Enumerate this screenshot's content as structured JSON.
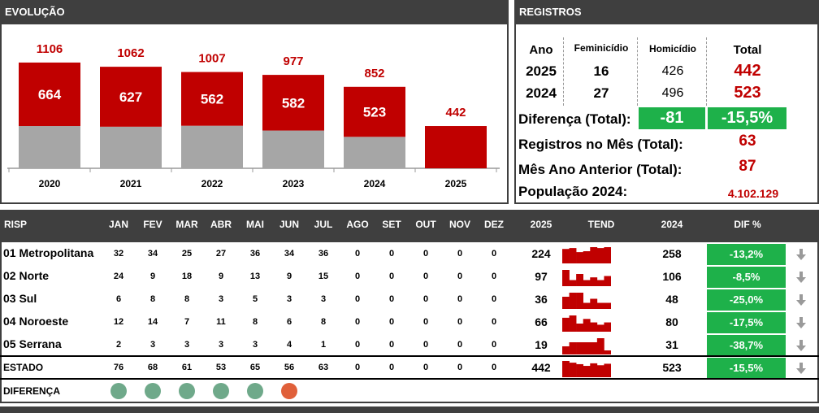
{
  "evolucao": {
    "title": "EVOLUÇÃO",
    "chart_data": {
      "type": "bar",
      "categories": [
        "2020",
        "2021",
        "2022",
        "2023",
        "2024",
        "2025"
      ],
      "series": [
        {
          "name": "",
          "values": [
            442,
            435,
            445,
            395,
            329,
            0
          ],
          "color": "#a6a6a6"
        },
        {
          "name": "",
          "values": [
            664,
            627,
            562,
            582,
            523,
            442
          ],
          "color": "#c00000"
        }
      ],
      "totals": [
        1106,
        1062,
        1007,
        977,
        852,
        442
      ],
      "inner_labels": [
        "664",
        "627",
        "562",
        "582",
        "523",
        ""
      ],
      "top_labels": [
        "1106",
        "1062",
        "1007",
        "977",
        "852",
        "442"
      ],
      "ylim": [
        0,
        1250
      ]
    }
  },
  "registros": {
    "title": "REGISTROS",
    "headers": {
      "ano": "Ano",
      "fem": "Feminicídio",
      "hom": "Homicídio",
      "total": "Total"
    },
    "rows": [
      {
        "ano": "2025",
        "fem": "16",
        "hom": "426",
        "total": "442"
      },
      {
        "ano": "2024",
        "fem": "27",
        "hom": "496",
        "total": "523"
      }
    ],
    "diferenca_label": "Diferença (Total):",
    "diferenca_abs": "-81",
    "diferenca_pct": "-15,5%",
    "mes_label": "Registros no Mês (Total):",
    "mes_value": "63",
    "mes_anterior_label": "Mês Ano Anterior (Total):",
    "mes_anterior_value": "87",
    "populacao_label": "População 2024:",
    "populacao_value": "4.102.129"
  },
  "table": {
    "headers": [
      "RISP",
      "JAN",
      "FEV",
      "MAR",
      "ABR",
      "MAI",
      "JUN",
      "JUL",
      "AGO",
      "SET",
      "OUT",
      "NOV",
      "DEZ",
      "2025",
      "TEND",
      "2024",
      "DIF %"
    ],
    "rows": [
      {
        "name": "01 Metropolitana",
        "months": [
          "32",
          "34",
          "25",
          "27",
          "36",
          "34",
          "36",
          "0",
          "0",
          "0",
          "0",
          "0"
        ],
        "y2025": "224",
        "y2024": "258",
        "dif": "-13,2%",
        "trend": [
          32,
          34,
          25,
          27,
          36,
          34,
          36
        ]
      },
      {
        "name": "02 Norte",
        "months": [
          "24",
          "9",
          "18",
          "9",
          "13",
          "9",
          "15",
          "0",
          "0",
          "0",
          "0",
          "0"
        ],
        "y2025": "97",
        "y2024": "106",
        "dif": "-8,5%",
        "trend": [
          24,
          9,
          18,
          9,
          13,
          9,
          15
        ]
      },
      {
        "name": "03 Sul",
        "months": [
          "6",
          "8",
          "8",
          "3",
          "5",
          "3",
          "3",
          "0",
          "0",
          "0",
          "0",
          "0"
        ],
        "y2025": "36",
        "y2024": "48",
        "dif": "-25,0%",
        "trend": [
          6,
          8,
          8,
          3,
          5,
          3,
          3
        ]
      },
      {
        "name": "04 Noroeste",
        "months": [
          "12",
          "14",
          "7",
          "11",
          "8",
          "6",
          "8",
          "0",
          "0",
          "0",
          "0",
          "0"
        ],
        "y2025": "66",
        "y2024": "80",
        "dif": "-17,5%",
        "trend": [
          12,
          14,
          7,
          11,
          8,
          6,
          8
        ]
      },
      {
        "name": "05 Serrana",
        "months": [
          "2",
          "3",
          "3",
          "3",
          "3",
          "4",
          "1",
          "0",
          "0",
          "0",
          "0",
          "0"
        ],
        "y2025": "19",
        "y2024": "31",
        "dif": "-38,7%",
        "trend": [
          2,
          3,
          3,
          3,
          3,
          4,
          1
        ]
      }
    ],
    "estado": {
      "name": "ESTADO",
      "months": [
        "76",
        "68",
        "61",
        "53",
        "65",
        "56",
        "63",
        "0",
        "0",
        "0",
        "0",
        "0"
      ],
      "y2025": "442",
      "y2024": "523",
      "dif": "-15,5%",
      "trend": [
        76,
        68,
        61,
        53,
        65,
        56,
        63
      ]
    },
    "diferenca": {
      "name": "DIFERENÇA",
      "dots": [
        "#6fa98a",
        "#6fa98a",
        "#6fa98a",
        "#6fa98a",
        "#6fa98a",
        "#e0603a"
      ]
    }
  }
}
